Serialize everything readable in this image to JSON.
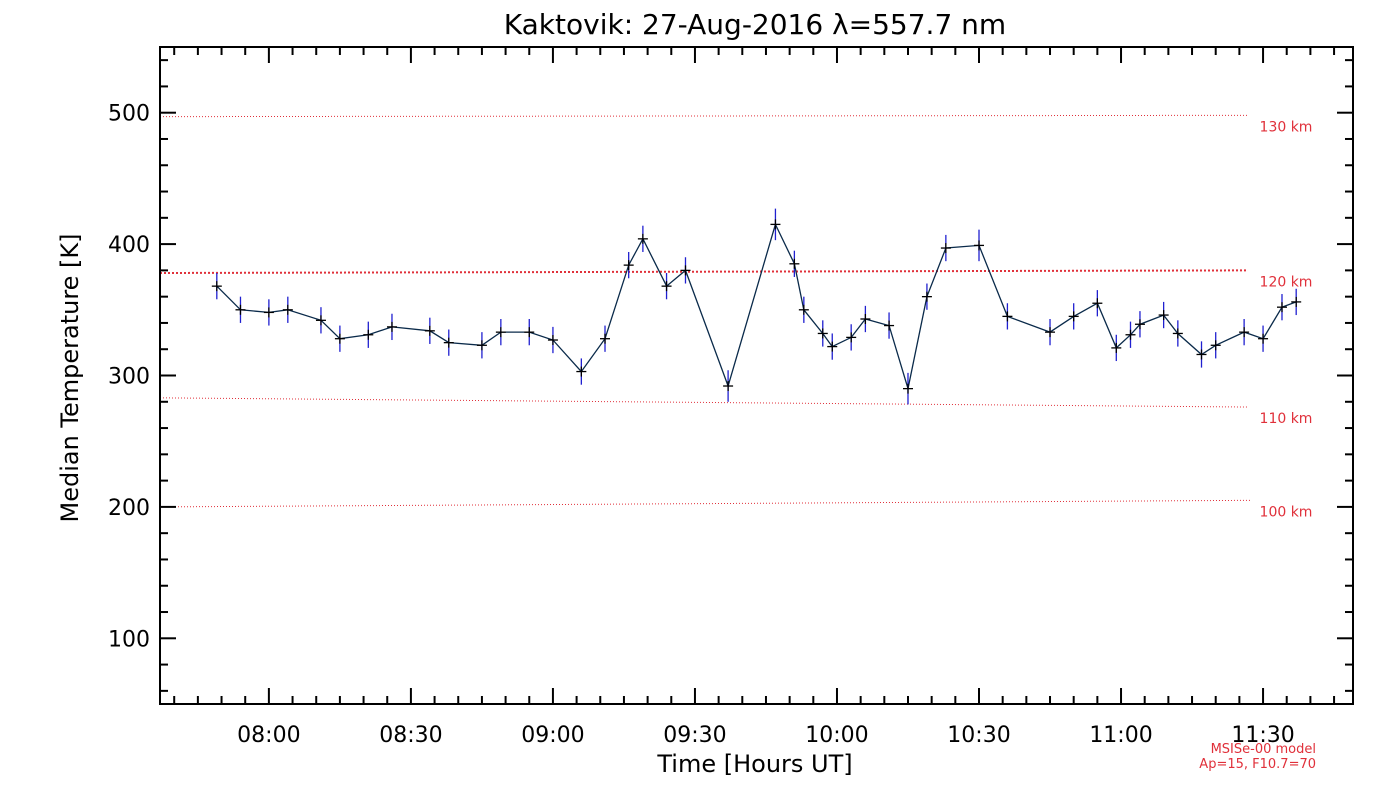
{
  "chart_data": {
    "type": "line",
    "title": "Kaktovik: 27-Aug-2016 λ=557.7 nm",
    "xlabel": "Time [Hours UT]",
    "ylabel": "Median Temperature [K]",
    "xlim": [
      "07:37",
      "11:49"
    ],
    "ylim": [
      50,
      550
    ],
    "xticks": [
      "08:00",
      "08:30",
      "09:00",
      "09:30",
      "10:00",
      "10:30",
      "11:00",
      "11:30"
    ],
    "yticks": [
      100,
      200,
      300,
      400,
      500
    ],
    "series": [
      {
        "x": [
          "07:49",
          "07:54",
          "08:00",
          "08:04",
          "08:11",
          "08:15",
          "08:21",
          "08:26",
          "08:34",
          "08:38",
          "08:45",
          "08:49",
          "08:55",
          "09:00",
          "09:06",
          "09:11",
          "09:16",
          "09:19",
          "09:24",
          "09:28",
          "09:37",
          "09:47",
          "09:51",
          "09:53",
          "09:57",
          "09:59",
          "10:03",
          "10:06",
          "10:11",
          "10:15",
          "10:19",
          "10:23",
          "10:30",
          "10:36",
          "10:45",
          "10:50",
          "10:55",
          "10:59",
          "11:02",
          "11:04",
          "11:09",
          "11:12",
          "11:17",
          "11:20",
          "11:26",
          "11:30",
          "11:34",
          "11:37"
        ],
        "y": [
          368,
          350,
          348,
          350,
          342,
          328,
          331,
          337,
          334,
          325,
          323,
          333,
          333,
          327,
          303,
          328,
          384,
          404,
          368,
          380,
          292,
          415,
          385,
          350,
          332,
          322,
          329,
          343,
          338,
          290,
          360,
          397,
          399,
          345,
          333,
          345,
          355,
          321,
          331,
          339,
          346,
          332,
          316,
          323,
          333,
          328,
          352,
          356
        ],
        "yerr": [
          10,
          10,
          10,
          10,
          10,
          10,
          10,
          10,
          10,
          10,
          10,
          10,
          10,
          10,
          10,
          10,
          10,
          10,
          10,
          10,
          12,
          12,
          10,
          10,
          10,
          10,
          10,
          10,
          10,
          12,
          10,
          10,
          12,
          10,
          10,
          10,
          10,
          10,
          10,
          10,
          10,
          10,
          10,
          10,
          10,
          10,
          10,
          10
        ]
      }
    ],
    "reference_lines": [
      {
        "label": "130 km",
        "y": [
          497,
          498
        ]
      },
      {
        "label": "120 km",
        "y": [
          378,
          380
        ]
      },
      {
        "label": "110 km",
        "y": [
          283,
          276
        ]
      },
      {
        "label": "100 km",
        "y": [
          200,
          205
        ]
      }
    ],
    "model_note": [
      "MSISe-00 model",
      "Ap=15, F10.7=70"
    ],
    "colors": {
      "series_line": "#0a2a4a",
      "error_bar": "#2020d0",
      "marker": "#000000",
      "reference": "#e0303a"
    }
  }
}
